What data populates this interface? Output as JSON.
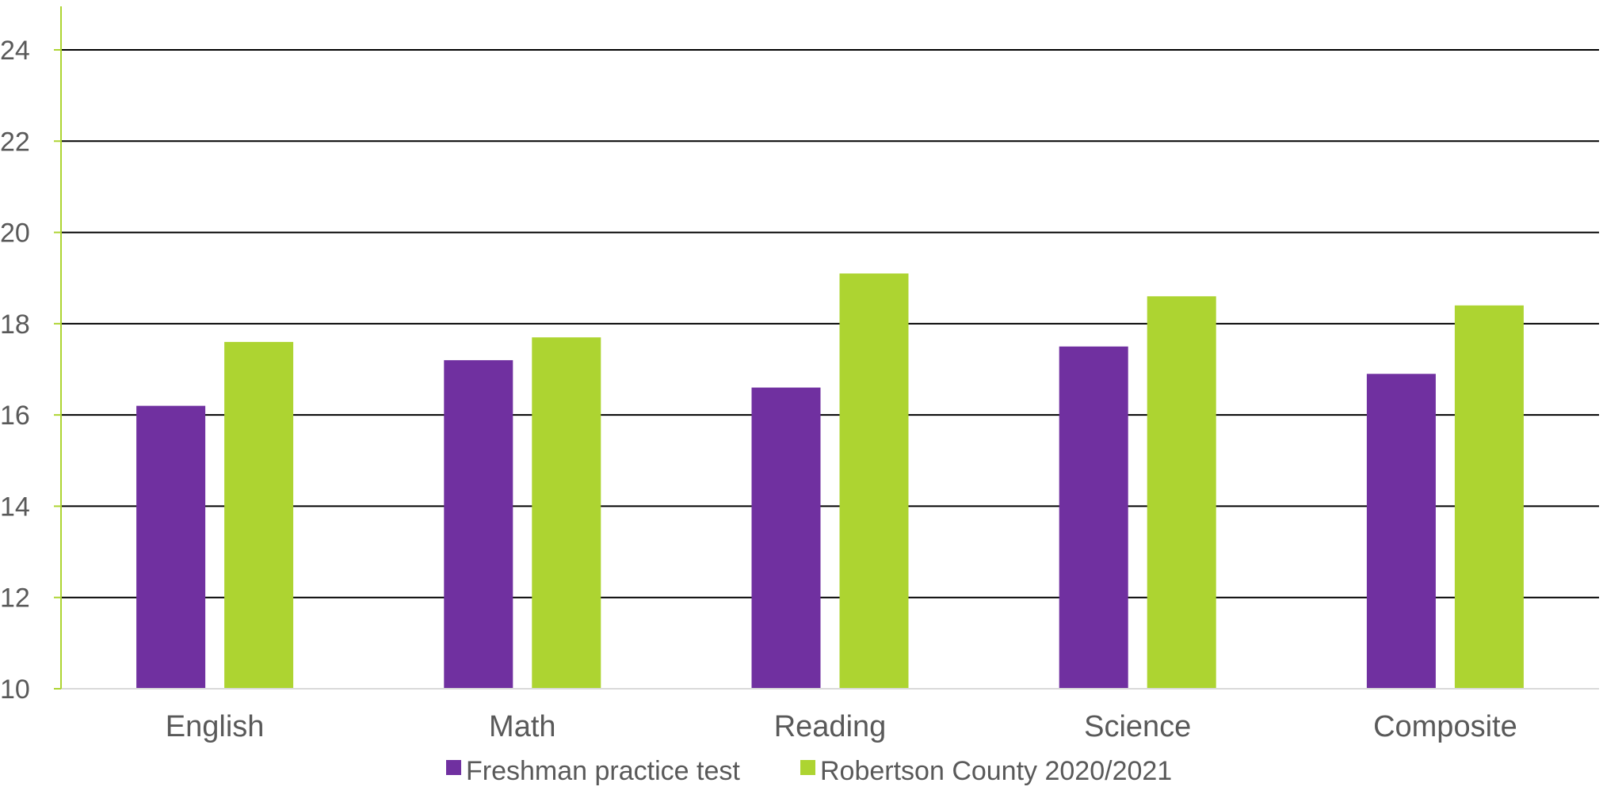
{
  "chart_data": {
    "type": "bar",
    "categories": [
      "English",
      "Math",
      "Reading",
      "Science",
      "Composite"
    ],
    "series": [
      {
        "name": "Freshman practice test",
        "color": "#7030A0",
        "values": [
          16.2,
          17.2,
          16.6,
          17.5,
          16.9
        ]
      },
      {
        "name": "Robertson County 2020/2021",
        "color": "#ADD431",
        "values": [
          17.6,
          17.7,
          19.1,
          18.6,
          18.4
        ]
      }
    ],
    "title": "",
    "xlabel": "",
    "ylabel": "",
    "ylim": [
      10,
      24
    ],
    "yticks": [
      10,
      12,
      14,
      16,
      18,
      20,
      22,
      24
    ],
    "ytick_labels": [
      "10",
      "12",
      "14",
      "16",
      "18",
      "20",
      "22",
      "24"
    ],
    "grid": true,
    "legend": "bottom-center",
    "colors": {
      "gridline": "#000000",
      "axis": "#ADD431",
      "baseline": "#D9D9D9",
      "tick_text": "#595959"
    }
  }
}
